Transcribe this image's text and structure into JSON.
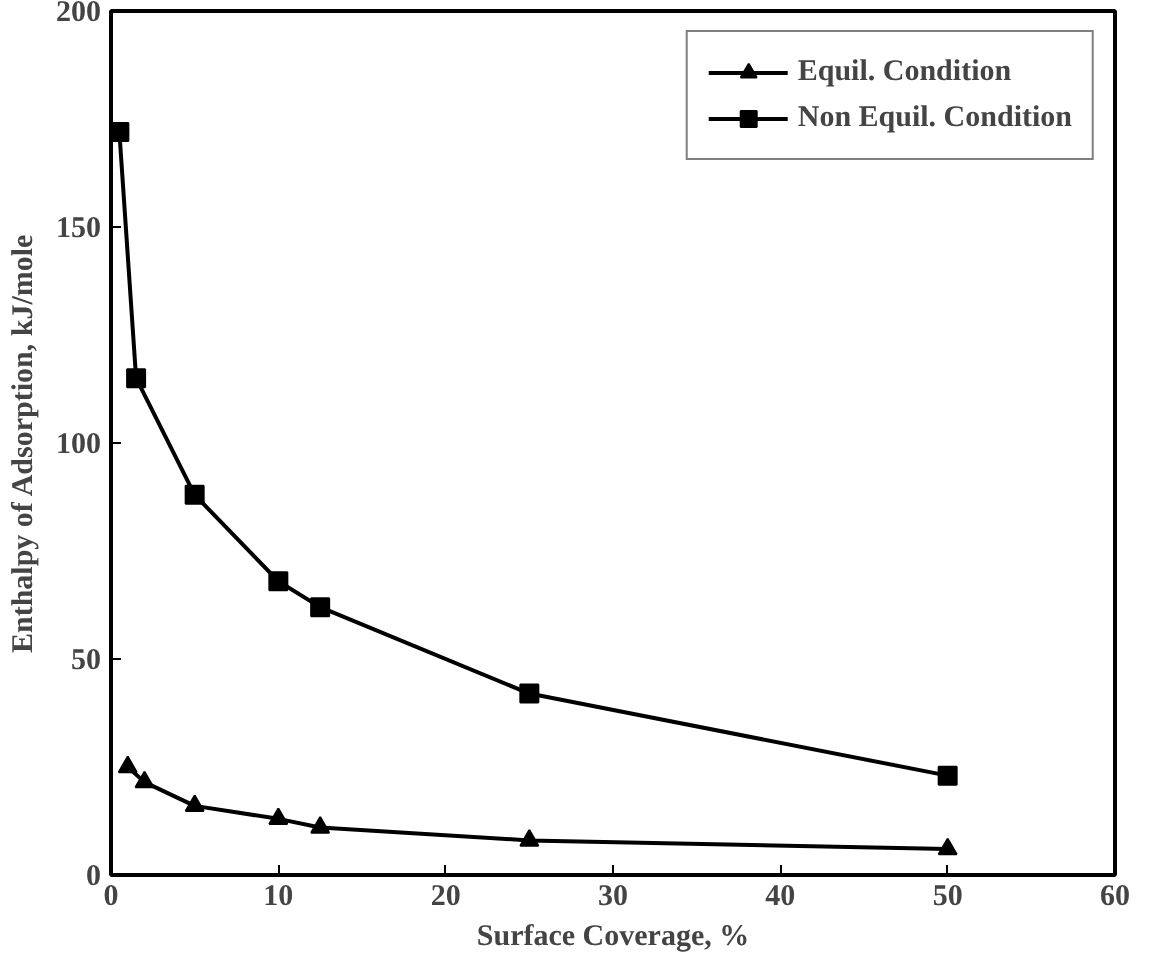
{
  "chart_data": {
    "type": "line",
    "xlabel": "Surface Coverage, %",
    "ylabel": "Enthalpy of Adsorption, kJ/mole",
    "xlim": [
      0,
      60
    ],
    "ylim": [
      0,
      200
    ],
    "xticks": [
      0,
      10,
      20,
      30,
      40,
      50,
      60
    ],
    "yticks": [
      0,
      50,
      100,
      150,
      200
    ],
    "grid": false,
    "legend": "top right",
    "series": [
      {
        "name": "Equil. Condition",
        "color": "#000000",
        "marker": "triangle",
        "x": [
          1,
          2,
          5,
          10,
          12.5,
          25,
          50
        ],
        "values": [
          25,
          21.5,
          16,
          13,
          11,
          8,
          6
        ]
      },
      {
        "name": "Non Equil. Condition",
        "color": "#000000",
        "marker": "square",
        "x": [
          0.5,
          1.5,
          5,
          10,
          12.5,
          25,
          50
        ],
        "values": [
          172,
          115,
          88,
          68,
          62,
          42,
          23
        ]
      }
    ]
  }
}
